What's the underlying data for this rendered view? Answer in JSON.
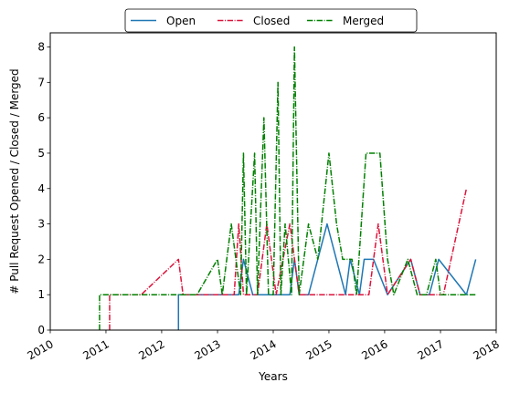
{
  "chart_data": {
    "type": "line",
    "title": "",
    "xlabel": "Years",
    "ylabel": "# Pull Request Opened / Closed / Merged",
    "xlim": [
      "2010-01-01",
      "2018-01-01"
    ],
    "ylim": [
      0,
      8.4
    ],
    "x_ticks": [
      "2010",
      "2011",
      "2012",
      "2013",
      "2014",
      "2015",
      "2016",
      "2017",
      "2018"
    ],
    "y_ticks": [
      "0",
      "1",
      "2",
      "3",
      "4",
      "5",
      "6",
      "7",
      "8"
    ],
    "grid": false,
    "legend_placement": "top-center",
    "series": [
      {
        "name": "Open",
        "color": "#1f77b4",
        "style": "solid",
        "points": [
          [
            "2012-04-20",
            0
          ],
          [
            "2012-04-20",
            1
          ],
          [
            "2013-05-20",
            1
          ],
          [
            "2013-06-20",
            2
          ],
          [
            "2013-08-20",
            1
          ],
          [
            "2014-04-20",
            1
          ],
          [
            "2014-05-20",
            2
          ],
          [
            "2014-06-20",
            1
          ],
          [
            "2014-08-20",
            1
          ],
          [
            "2014-12-20",
            3
          ],
          [
            "2015-04-20",
            1
          ],
          [
            "2015-05-20",
            2
          ],
          [
            "2015-07-20",
            1
          ],
          [
            "2015-08-20",
            2
          ],
          [
            "2015-10-20",
            2
          ],
          [
            "2016-01-20",
            1
          ],
          [
            "2016-06-20",
            2
          ],
          [
            "2016-08-20",
            1
          ],
          [
            "2016-10-20",
            1
          ],
          [
            "2016-12-20",
            2
          ],
          [
            "2017-06-20",
            1
          ],
          [
            "2017-08-20",
            2
          ]
        ]
      },
      {
        "name": "Closed",
        "color": "#dc143c",
        "style": "dashdot",
        "points": [
          [
            "2011-01-25",
            0
          ],
          [
            "2011-01-25",
            1
          ],
          [
            "2011-08-20",
            1
          ],
          [
            "2012-04-20",
            2
          ],
          [
            "2012-05-20",
            1
          ],
          [
            "2013-04-20",
            1
          ],
          [
            "2013-05-20",
            3
          ],
          [
            "2013-06-20",
            1
          ],
          [
            "2013-09-20",
            1
          ],
          [
            "2013-11-20",
            3
          ],
          [
            "2014-01-20",
            1
          ],
          [
            "2014-04-20",
            3
          ],
          [
            "2014-06-20",
            1
          ],
          [
            "2015-09-20",
            1
          ],
          [
            "2015-11-20",
            3
          ],
          [
            "2016-01-20",
            1
          ],
          [
            "2016-06-20",
            2
          ],
          [
            "2016-08-20",
            1
          ],
          [
            "2017-01-20",
            1
          ],
          [
            "2017-06-20",
            4
          ]
        ]
      },
      {
        "name": "Merged",
        "color": "#008000",
        "style": "dashdot",
        "points": [
          [
            "2010-11-20",
            0
          ],
          [
            "2010-11-20",
            1
          ],
          [
            "2012-08-20",
            1
          ],
          [
            "2013-01-01",
            2
          ],
          [
            "2013-02-01",
            1
          ],
          [
            "2013-04-01",
            3
          ],
          [
            "2013-06-01",
            1
          ],
          [
            "2013-06-20",
            5
          ],
          [
            "2013-07-10",
            1
          ],
          [
            "2013-09-01",
            5
          ],
          [
            "2013-09-20",
            1
          ],
          [
            "2013-11-01",
            6
          ],
          [
            "2013-12-01",
            1
          ],
          [
            "2014-01-01",
            1
          ],
          [
            "2014-02-01",
            7
          ],
          [
            "2014-02-20",
            1
          ],
          [
            "2014-03-20",
            3
          ],
          [
            "2014-05-01",
            1
          ],
          [
            "2014-05-20",
            8
          ],
          [
            "2014-06-20",
            1
          ],
          [
            "2014-08-20",
            3
          ],
          [
            "2014-10-20",
            2
          ],
          [
            "2015-01-01",
            5
          ],
          [
            "2015-02-20",
            3
          ],
          [
            "2015-04-01",
            2
          ],
          [
            "2015-06-01",
            2
          ],
          [
            "2015-07-01",
            1
          ],
          [
            "2015-09-01",
            5
          ],
          [
            "2015-12-01",
            5
          ],
          [
            "2016-01-20",
            2
          ],
          [
            "2016-03-01",
            1
          ],
          [
            "2016-06-01",
            2
          ],
          [
            "2016-08-01",
            1
          ],
          [
            "2016-10-01",
            1
          ],
          [
            "2016-12-01",
            2
          ],
          [
            "2017-01-01",
            1
          ],
          [
            "2017-08-20",
            1
          ]
        ]
      }
    ]
  }
}
